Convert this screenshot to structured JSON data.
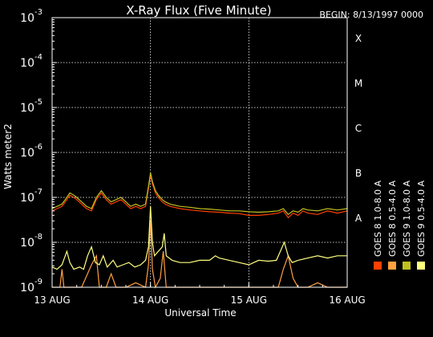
{
  "chart_data": {
    "type": "line",
    "title": "X-Ray Flux (Five Minute)",
    "begin_label": "BEGIN: 8/13/1997 0000",
    "ylabel": "Watts meter2",
    "xlabel": "Universal Time",
    "y_scale": "log",
    "ylim": [
      1e-09,
      0.001
    ],
    "xlim": [
      0,
      3
    ],
    "x_ticks": [
      {
        "x": 0,
        "label": "13 AUG"
      },
      {
        "x": 1,
        "label": "14 AUG"
      },
      {
        "x": 2,
        "label": "15 AUG"
      },
      {
        "x": 3,
        "label": "16 AUG"
      }
    ],
    "y_ticks": [
      {
        "exp": -9,
        "label": "10",
        "sup": "-9"
      },
      {
        "exp": -8,
        "label": "10",
        "sup": "-8"
      },
      {
        "exp": -7,
        "label": "10",
        "sup": "-7"
      },
      {
        "exp": -6,
        "label": "10",
        "sup": "-6"
      },
      {
        "exp": -5,
        "label": "10",
        "sup": "-5"
      },
      {
        "exp": -4,
        "label": "10",
        "sup": "-4"
      },
      {
        "exp": -3,
        "label": "10",
        "sup": "-3"
      }
    ],
    "flare_classes": [
      {
        "label": "A",
        "exp": -8
      },
      {
        "label": "B",
        "exp": -7
      },
      {
        "label": "C",
        "exp": -6
      },
      {
        "label": "M",
        "exp": -5
      },
      {
        "label": "X",
        "exp": -4
      }
    ],
    "grid_x": [
      1,
      2
    ],
    "grid_y_exps": [
      -8,
      -7,
      -6,
      -5,
      -4
    ],
    "series": [
      {
        "name": "GOES 8 1.0-8.0 A",
        "color": "#ff4000",
        "points": [
          [
            0.0,
            -7.3
          ],
          [
            0.05,
            -7.25
          ],
          [
            0.1,
            -7.2
          ],
          [
            0.15,
            -7.05
          ],
          [
            0.18,
            -6.95
          ],
          [
            0.22,
            -7.0
          ],
          [
            0.25,
            -7.05
          ],
          [
            0.3,
            -7.15
          ],
          [
            0.35,
            -7.25
          ],
          [
            0.4,
            -7.3
          ],
          [
            0.45,
            -7.05
          ],
          [
            0.5,
            -6.9
          ],
          [
            0.55,
            -7.05
          ],
          [
            0.6,
            -7.15
          ],
          [
            0.65,
            -7.1
          ],
          [
            0.7,
            -7.05
          ],
          [
            0.75,
            -7.15
          ],
          [
            0.8,
            -7.25
          ],
          [
            0.85,
            -7.2
          ],
          [
            0.9,
            -7.25
          ],
          [
            0.95,
            -7.2
          ],
          [
            0.98,
            -6.8
          ],
          [
            1.0,
            -6.5
          ],
          [
            1.02,
            -6.7
          ],
          [
            1.05,
            -6.9
          ],
          [
            1.08,
            -7.0
          ],
          [
            1.12,
            -7.1
          ],
          [
            1.15,
            -7.15
          ],
          [
            1.2,
            -7.2
          ],
          [
            1.3,
            -7.25
          ],
          [
            1.4,
            -7.28
          ],
          [
            1.5,
            -7.3
          ],
          [
            1.6,
            -7.32
          ],
          [
            1.7,
            -7.33
          ],
          [
            1.8,
            -7.35
          ],
          [
            1.9,
            -7.36
          ],
          [
            2.0,
            -7.4
          ],
          [
            2.1,
            -7.4
          ],
          [
            2.2,
            -7.38
          ],
          [
            2.3,
            -7.35
          ],
          [
            2.35,
            -7.3
          ],
          [
            2.4,
            -7.45
          ],
          [
            2.45,
            -7.35
          ],
          [
            2.5,
            -7.4
          ],
          [
            2.55,
            -7.3
          ],
          [
            2.6,
            -7.35
          ],
          [
            2.7,
            -7.38
          ],
          [
            2.8,
            -7.3
          ],
          [
            2.9,
            -7.35
          ],
          [
            3.0,
            -7.3
          ]
        ]
      },
      {
        "name": "GOES 8 0.5-4.0 A",
        "color": "#ffa040",
        "points": [
          [
            0.0,
            -9.0
          ],
          [
            0.08,
            -9.0
          ],
          [
            0.1,
            -8.6
          ],
          [
            0.12,
            -9.0
          ],
          [
            0.2,
            -9.0
          ],
          [
            0.3,
            -9.0
          ],
          [
            0.4,
            -8.5
          ],
          [
            0.45,
            -8.3
          ],
          [
            0.48,
            -9.0
          ],
          [
            0.55,
            -9.0
          ],
          [
            0.6,
            -8.7
          ],
          [
            0.65,
            -9.0
          ],
          [
            0.75,
            -9.0
          ],
          [
            0.85,
            -8.9
          ],
          [
            0.95,
            -9.0
          ],
          [
            0.98,
            -8.5
          ],
          [
            1.0,
            -7.5
          ],
          [
            1.02,
            -8.6
          ],
          [
            1.05,
            -9.0
          ],
          [
            1.1,
            -8.8
          ],
          [
            1.13,
            -8.2
          ],
          [
            1.16,
            -9.0
          ],
          [
            1.3,
            -9.0
          ],
          [
            1.5,
            -9.0
          ],
          [
            1.7,
            -9.0
          ],
          [
            1.9,
            -9.0
          ],
          [
            2.1,
            -9.0
          ],
          [
            2.3,
            -9.0
          ],
          [
            2.35,
            -8.6
          ],
          [
            2.4,
            -8.3
          ],
          [
            2.45,
            -8.8
          ],
          [
            2.5,
            -9.0
          ],
          [
            2.6,
            -9.0
          ],
          [
            2.7,
            -8.9
          ],
          [
            2.8,
            -9.0
          ],
          [
            2.9,
            -9.0
          ],
          [
            3.0,
            -9.0
          ]
        ]
      },
      {
        "name": "GOES 9 1.0-8.0 A",
        "color": "#c0c020",
        "points": [
          [
            0.0,
            -7.25
          ],
          [
            0.05,
            -7.2
          ],
          [
            0.1,
            -7.15
          ],
          [
            0.15,
            -7.0
          ],
          [
            0.18,
            -6.9
          ],
          [
            0.22,
            -6.95
          ],
          [
            0.25,
            -7.0
          ],
          [
            0.3,
            -7.1
          ],
          [
            0.35,
            -7.2
          ],
          [
            0.4,
            -7.25
          ],
          [
            0.45,
            -7.0
          ],
          [
            0.5,
            -6.85
          ],
          [
            0.55,
            -7.0
          ],
          [
            0.6,
            -7.1
          ],
          [
            0.65,
            -7.05
          ],
          [
            0.7,
            -7.0
          ],
          [
            0.75,
            -7.1
          ],
          [
            0.8,
            -7.2
          ],
          [
            0.85,
            -7.15
          ],
          [
            0.9,
            -7.2
          ],
          [
            0.95,
            -7.15
          ],
          [
            0.98,
            -6.75
          ],
          [
            1.0,
            -6.45
          ],
          [
            1.02,
            -6.65
          ],
          [
            1.05,
            -6.85
          ],
          [
            1.08,
            -6.95
          ],
          [
            1.12,
            -7.05
          ],
          [
            1.15,
            -7.1
          ],
          [
            1.2,
            -7.15
          ],
          [
            1.3,
            -7.2
          ],
          [
            1.4,
            -7.22
          ],
          [
            1.5,
            -7.25
          ],
          [
            1.6,
            -7.26
          ],
          [
            1.7,
            -7.28
          ],
          [
            1.8,
            -7.3
          ],
          [
            1.9,
            -7.3
          ],
          [
            2.0,
            -7.32
          ],
          [
            2.1,
            -7.33
          ],
          [
            2.2,
            -7.32
          ],
          [
            2.3,
            -7.3
          ],
          [
            2.35,
            -7.25
          ],
          [
            2.4,
            -7.38
          ],
          [
            2.45,
            -7.3
          ],
          [
            2.5,
            -7.33
          ],
          [
            2.55,
            -7.25
          ],
          [
            2.6,
            -7.28
          ],
          [
            2.7,
            -7.3
          ],
          [
            2.8,
            -7.25
          ],
          [
            2.9,
            -7.28
          ],
          [
            3.0,
            -7.25
          ]
        ]
      },
      {
        "name": "GOES 9 0.5-4.0 A",
        "color": "#ffff80",
        "points": [
          [
            0.0,
            -8.55
          ],
          [
            0.05,
            -8.6
          ],
          [
            0.1,
            -8.5
          ],
          [
            0.15,
            -8.2
          ],
          [
            0.18,
            -8.45
          ],
          [
            0.22,
            -8.6
          ],
          [
            0.28,
            -8.55
          ],
          [
            0.32,
            -8.6
          ],
          [
            0.36,
            -8.3
          ],
          [
            0.4,
            -8.1
          ],
          [
            0.44,
            -8.45
          ],
          [
            0.48,
            -8.5
          ],
          [
            0.52,
            -8.3
          ],
          [
            0.56,
            -8.55
          ],
          [
            0.62,
            -8.4
          ],
          [
            0.66,
            -8.55
          ],
          [
            0.72,
            -8.5
          ],
          [
            0.78,
            -8.45
          ],
          [
            0.84,
            -8.55
          ],
          [
            0.9,
            -8.5
          ],
          [
            0.95,
            -8.4
          ],
          [
            0.98,
            -8.1
          ],
          [
            1.0,
            -7.2
          ],
          [
            1.02,
            -8.0
          ],
          [
            1.04,
            -8.3
          ],
          [
            1.08,
            -8.2
          ],
          [
            1.12,
            -8.1
          ],
          [
            1.14,
            -7.8
          ],
          [
            1.16,
            -8.3
          ],
          [
            1.22,
            -8.4
          ],
          [
            1.3,
            -8.45
          ],
          [
            1.4,
            -8.45
          ],
          [
            1.5,
            -8.4
          ],
          [
            1.6,
            -8.4
          ],
          [
            1.66,
            -8.3
          ],
          [
            1.7,
            -8.35
          ],
          [
            1.8,
            -8.4
          ],
          [
            1.9,
            -8.45
          ],
          [
            2.0,
            -8.5
          ],
          [
            2.05,
            -8.45
          ],
          [
            2.1,
            -8.4
          ],
          [
            2.2,
            -8.42
          ],
          [
            2.28,
            -8.4
          ],
          [
            2.32,
            -8.2
          ],
          [
            2.36,
            -8.0
          ],
          [
            2.4,
            -8.3
          ],
          [
            2.44,
            -8.45
          ],
          [
            2.5,
            -8.4
          ],
          [
            2.6,
            -8.35
          ],
          [
            2.7,
            -8.3
          ],
          [
            2.8,
            -8.35
          ],
          [
            2.9,
            -8.3
          ],
          [
            3.0,
            -8.3
          ]
        ]
      }
    ],
    "legend": [
      {
        "label": "GOES 8 1.0-8.0 A",
        "color": "#ff4000"
      },
      {
        "label": "GOES 8 0.5-4.0 A",
        "color": "#ffa040"
      },
      {
        "label": "GOES 9 1.0-8.0 A",
        "color": "#c0c020"
      },
      {
        "label": "GOES 9 0.5-4.0 A",
        "color": "#ffff80"
      }
    ]
  }
}
